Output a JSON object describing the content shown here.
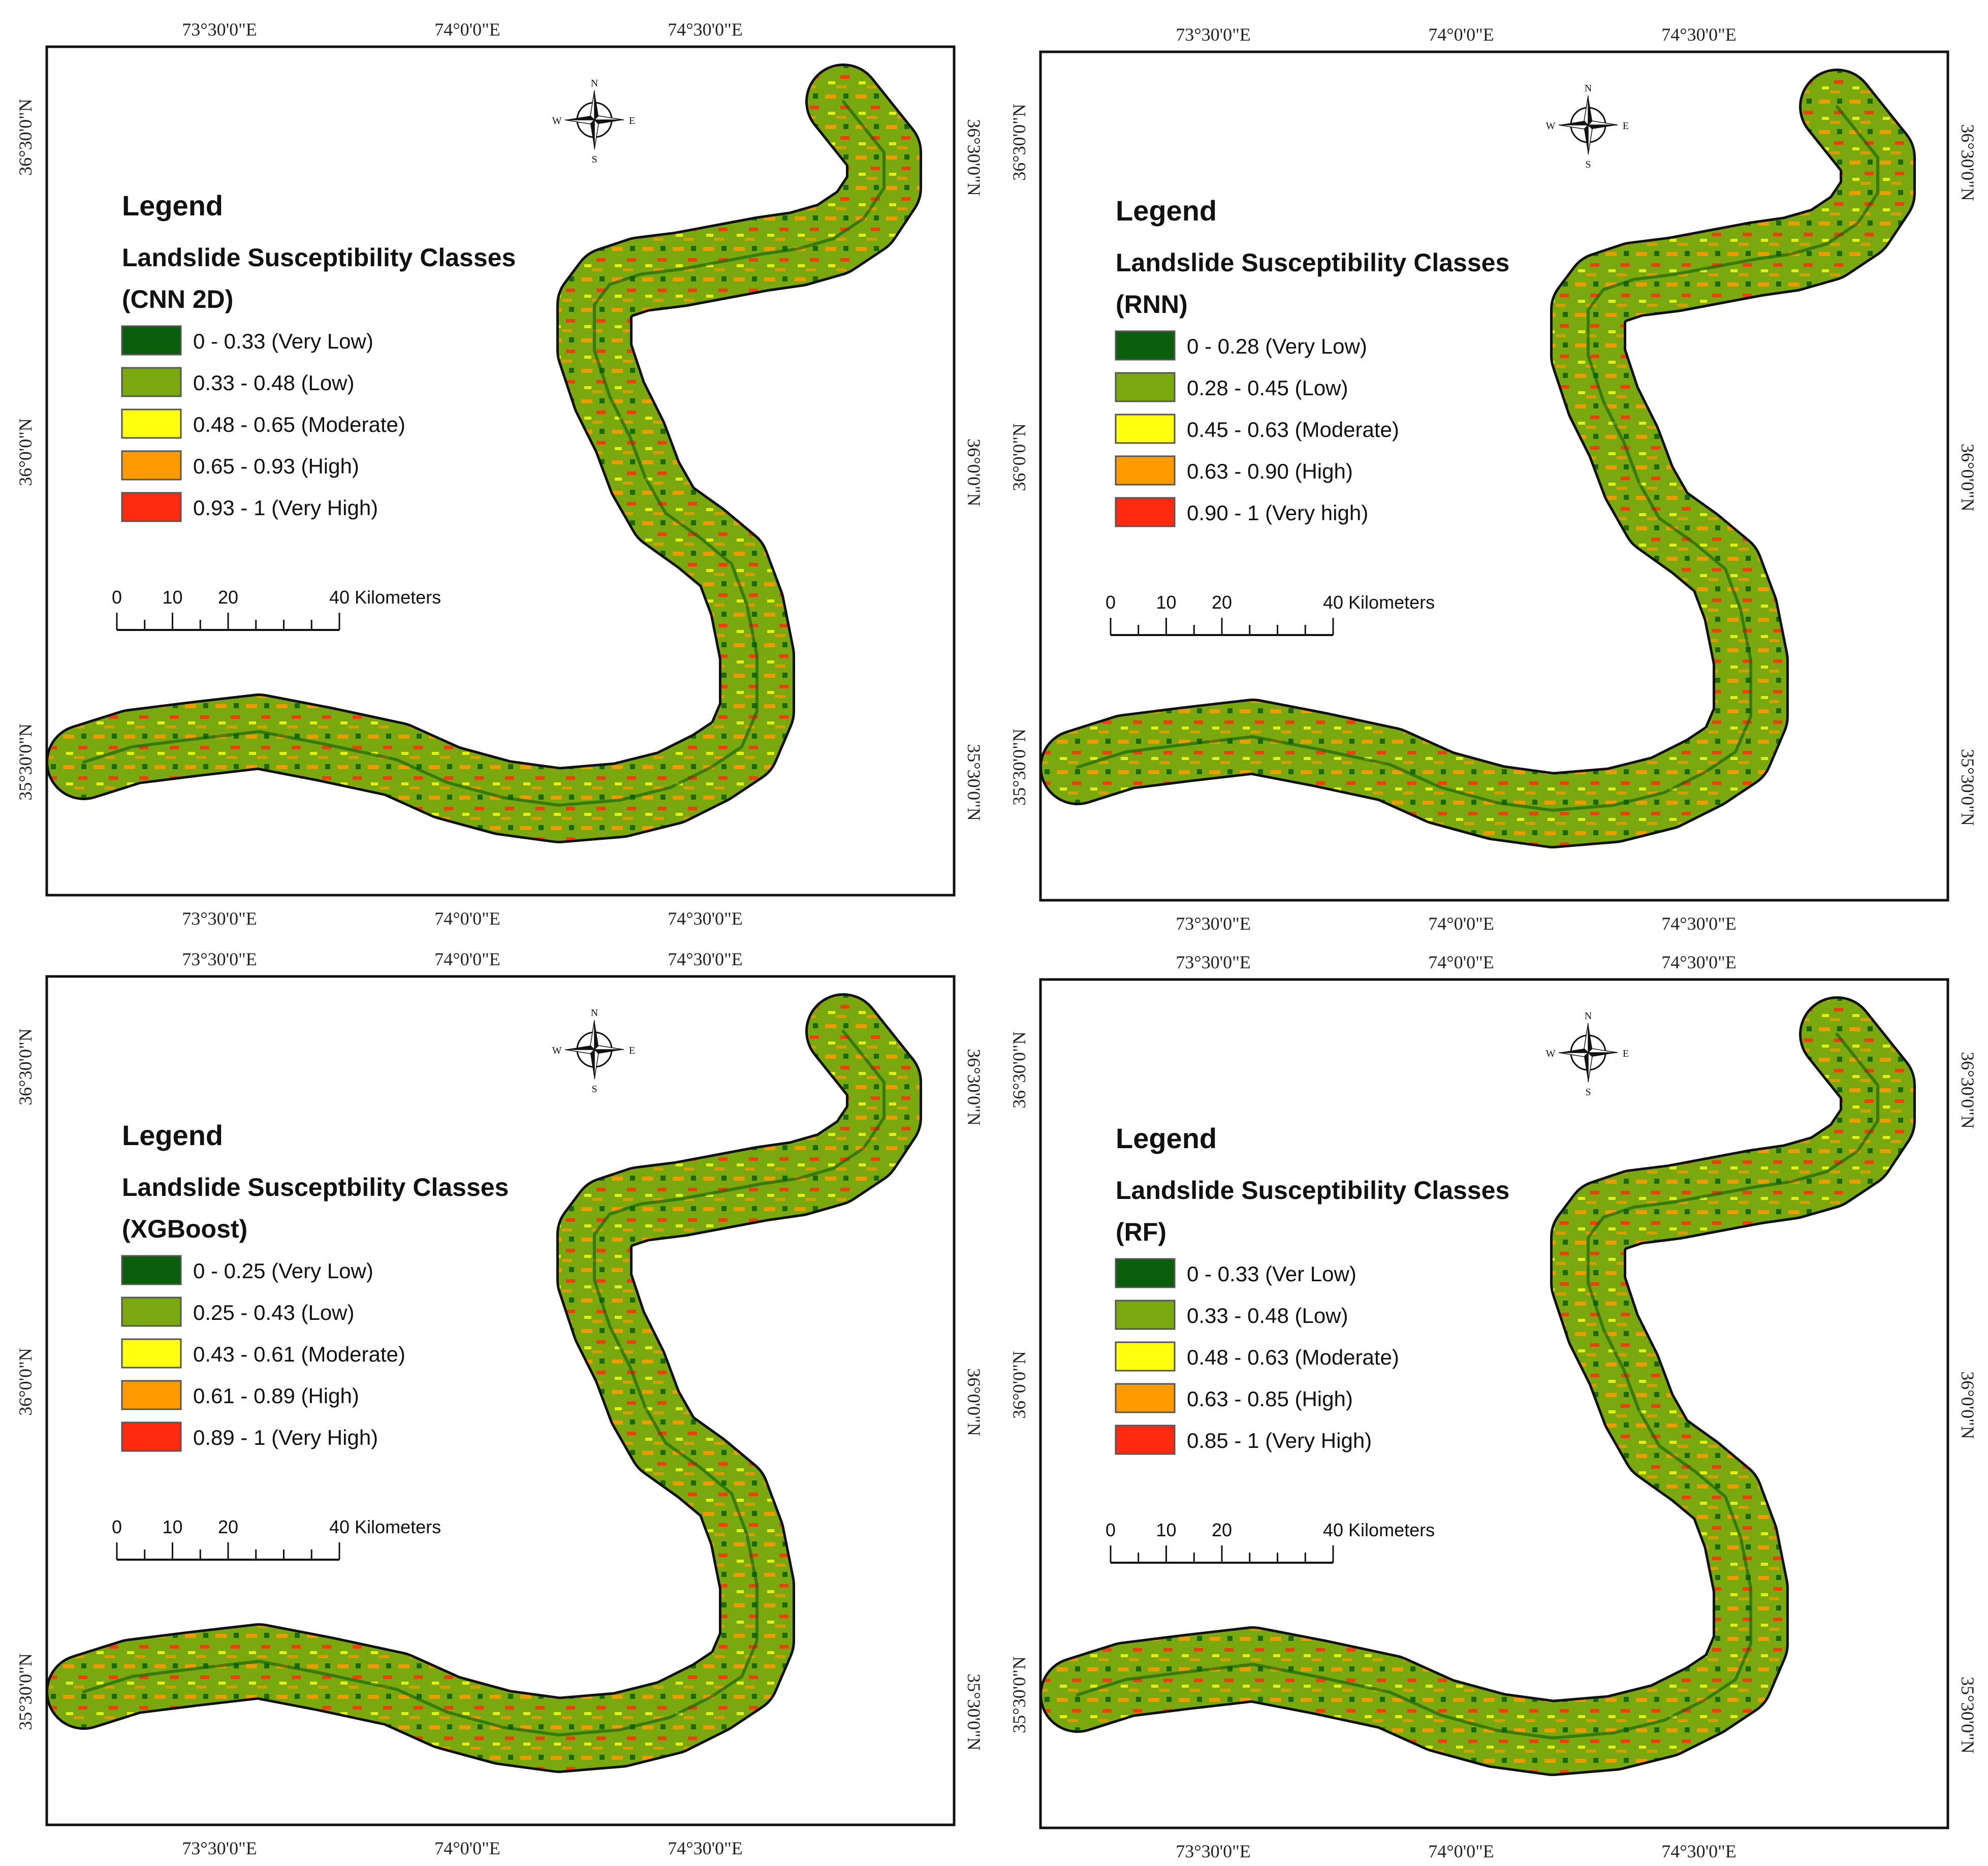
{
  "colors": {
    "very_low": "#0b5e0b",
    "low": "#7aa80f",
    "moderate": "#ffff10",
    "high": "#ff9a00",
    "very_high": "#ff2a10"
  },
  "compass": {
    "n": "N",
    "s": "S",
    "e": "E",
    "w": "W"
  },
  "axes": {
    "top": [
      "73°30'0\"E",
      "74°0'0\"E",
      "74°30'0\"E"
    ],
    "bottom": [
      "73°30'0\"E",
      "74°0'0\"E",
      "74°30'0\"E"
    ],
    "left": [
      "36°30'0\"N",
      "36°0'0\"N",
      "35°30'0\"N"
    ],
    "right": [
      "36°30'0\"N",
      "36°0'0\"N",
      "35°30'0\"N"
    ]
  },
  "scale": {
    "t0": "0",
    "t10": "10",
    "t20": "20",
    "t40": "40 Kilometers"
  },
  "panels": [
    {
      "legend_title": "Legend",
      "subtitle": "Landslide Susceptibility Classes",
      "model": "(CNN 2D)",
      "classes": [
        "0 - 0.33 (Very Low)",
        "0.33 - 0.48 (Low)",
        "0.48 - 0.65 (Moderate)",
        "0.65 - 0.93 (High)",
        "0.93 - 1 (Very High)"
      ]
    },
    {
      "legend_title": "Legend",
      "subtitle": "Landslide Susceptibility Classes",
      "model": "(RNN)",
      "classes": [
        "0 - 0.28 (Very Low)",
        "0.28 - 0.45 (Low)",
        "0.45 - 0.63 (Moderate)",
        "0.63 - 0.90 (High)",
        "0.90 - 1 (Very high)"
      ]
    },
    {
      "legend_title": "Legend",
      "subtitle": "Landslide Susceptbility Classes",
      "model": "(XGBoost)",
      "classes": [
        "0 - 0.25 (Very Low)",
        "0.25 - 0.43 (Low)",
        "0.43 - 0.61 (Moderate)",
        "0.61 - 0.89 (High)",
        "0.89 - 1 (Very High)"
      ]
    },
    {
      "legend_title": "Legend",
      "subtitle": "Landslide Susceptibility Classes",
      "model": "(RF)",
      "classes": [
        "0 - 0.33 (Ver Low)",
        "0.33 - 0.48 (Low)",
        "0.48 - 0.63 (Moderate)",
        "0.63 - 0.85 (High)",
        "0.85 - 1 (Very High)"
      ]
    }
  ]
}
